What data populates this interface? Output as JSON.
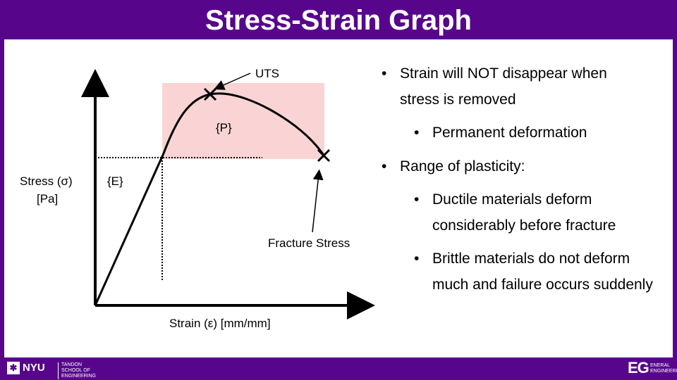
{
  "title": "Stress-Strain Graph",
  "graph": {
    "y_axis_label_line1": "Stress (σ)",
    "y_axis_label_line2": "[Pa]",
    "x_axis_label": "Strain (ε)  [mm/mm]",
    "uts_label": "UTS",
    "plastic_region_label": "{P}",
    "elastic_region_label": "{E}",
    "fracture_label": "Fracture Stress",
    "plastic_region_color": "#fad4d4",
    "curve_color": "#000000"
  },
  "bullets": [
    {
      "level": 1,
      "text": "Strain will NOT disappear when stress is removed"
    },
    {
      "level": 2,
      "text": "Permanent deformation"
    },
    {
      "level": 1,
      "text": "Range of plasticity:"
    },
    {
      "level": 2,
      "text": "Ductile materials deform considerably before fracture"
    },
    {
      "level": 2,
      "text": "Brittle materials do not deform much and failure occurs suddenly"
    }
  ],
  "bullet_symbol": "•",
  "footer": {
    "nyu_mark": "✱",
    "nyu_text": "NYU",
    "nyu_subtext": "TANDON SCHOOL OF ENGINEERING",
    "eg_mark": "EG",
    "eg_subtext": "ENGINEERING",
    "eg_subtext_prefix": "ENERAL"
  },
  "colors": {
    "brand_purple": "#57068c",
    "background": "#ffffff"
  }
}
